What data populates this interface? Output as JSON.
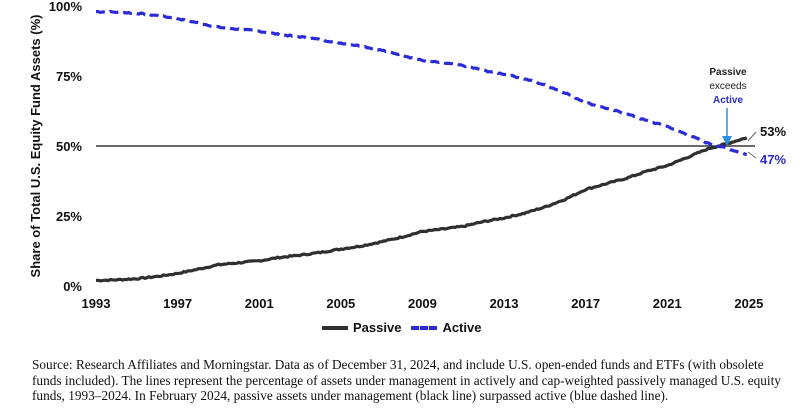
{
  "chart_data": {
    "type": "line",
    "ylabel": "Share of Total U.S. Equity Fund Assets (%)",
    "xlabel": "",
    "x_ticks": [
      "1993",
      "1997",
      "2001",
      "2005",
      "2009",
      "2013",
      "2017",
      "2021",
      "2025"
    ],
    "y_ticks": [
      "0%",
      "25%",
      "50%",
      "75%",
      "100%"
    ],
    "xlim": [
      1993,
      2025.3
    ],
    "ylim": [
      0,
      100
    ],
    "reference_line": 50,
    "series": [
      {
        "name": "Passive",
        "color": "#2f2f2f",
        "style": "solid",
        "points": [
          [
            1993,
            2
          ],
          [
            1994,
            2.2
          ],
          [
            1995,
            2.6
          ],
          [
            1996,
            3.4
          ],
          [
            1997,
            4.5
          ],
          [
            1998,
            6
          ],
          [
            1999,
            7.6
          ],
          [
            2000,
            8.3
          ],
          [
            2001,
            9
          ],
          [
            2002,
            10.2
          ],
          [
            2003,
            11
          ],
          [
            2004,
            12
          ],
          [
            2005,
            13.2
          ],
          [
            2006,
            14.3
          ],
          [
            2007,
            15.8
          ],
          [
            2008,
            17.5
          ],
          [
            2009,
            19.5
          ],
          [
            2010,
            20.3
          ],
          [
            2011,
            21.3
          ],
          [
            2012,
            23
          ],
          [
            2013,
            24.3
          ],
          [
            2014,
            26
          ],
          [
            2015,
            28.2
          ],
          [
            2016,
            31
          ],
          [
            2017,
            34.5
          ],
          [
            2018,
            36.5
          ],
          [
            2019,
            38.5
          ],
          [
            2020,
            41
          ],
          [
            2021,
            43
          ],
          [
            2022,
            46
          ],
          [
            2023,
            49
          ],
          [
            2024,
            51
          ],
          [
            2024.9,
            53
          ]
        ]
      },
      {
        "name": "Active",
        "color": "#2a2ad6",
        "style": "dashed",
        "points": [
          [
            1993,
            98
          ],
          [
            1994,
            97.8
          ],
          [
            1995,
            97.4
          ],
          [
            1996,
            96.6
          ],
          [
            1997,
            95.5
          ],
          [
            1998,
            94
          ],
          [
            1999,
            92.4
          ],
          [
            2000,
            91.7
          ],
          [
            2001,
            91
          ],
          [
            2002,
            89.8
          ],
          [
            2003,
            89
          ],
          [
            2004,
            88
          ],
          [
            2005,
            86.8
          ],
          [
            2006,
            85.7
          ],
          [
            2007,
            84.2
          ],
          [
            2008,
            82.5
          ],
          [
            2009,
            80.5
          ],
          [
            2010,
            79.7
          ],
          [
            2011,
            78.7
          ],
          [
            2012,
            77
          ],
          [
            2013,
            75.7
          ],
          [
            2014,
            74
          ],
          [
            2015,
            71.8
          ],
          [
            2016,
            69
          ],
          [
            2017,
            65.5
          ],
          [
            2018,
            63.5
          ],
          [
            2019,
            61.5
          ],
          [
            2020,
            59
          ],
          [
            2021,
            57
          ],
          [
            2022,
            54
          ],
          [
            2023,
            51
          ],
          [
            2024,
            49
          ],
          [
            2024.9,
            47
          ]
        ]
      }
    ],
    "annotation": {
      "line1": "Passive",
      "line2": "exceeds",
      "line3": "Active"
    },
    "end_labels": {
      "passive": "53%",
      "active": "47%"
    },
    "legend_position": "bottom-center"
  },
  "legend": {
    "passive": "Passive",
    "active": "Active"
  },
  "source_note": "Source: Research Affiliates and Morningstar. Data as of December 31, 2024, and include U.S. open-ended funds and ETFs (with obsolete funds included). The lines represent the percentage of assets under management in actively and cap-weighted passively managed U.S. equity funds, 1993–2024. In February 2024, passive assets under management (black line) surpassed active (blue dashed line)."
}
